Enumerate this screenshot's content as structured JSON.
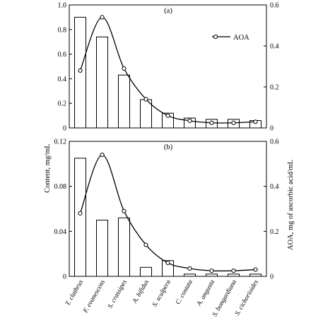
{
  "chart_data": [
    {
      "panel_label": "(a)",
      "type": "bar+line",
      "categories": [
        "T. clathrus",
        "F. evanescens",
        "S. crassipes",
        "A. bifidus",
        "S. sculpera",
        "C. costata",
        "A. angusta",
        "S. bongardiana",
        "S. cichorioides"
      ],
      "series": [
        {
          "kind": "bar",
          "axis": "left",
          "values": [
            0.9,
            0.74,
            0.43,
            0.23,
            0.12,
            0.08,
            0.07,
            0.07,
            0.06
          ]
        },
        {
          "name": "AOA",
          "kind": "line",
          "axis": "right",
          "values": [
            0.28,
            0.54,
            0.29,
            0.14,
            0.06,
            0.035,
            0.025,
            0.025,
            0.03
          ]
        }
      ],
      "ylim_left": [
        0,
        1.0
      ],
      "yticks_left": [
        "0",
        "0.2",
        "0.4",
        "0.6",
        "0.8",
        "1.0"
      ],
      "ylim_right": [
        0,
        0.6
      ],
      "yticks_right": [
        "0",
        "0.2",
        "0.4",
        "0.6"
      ],
      "legend": {
        "label": "AOA",
        "placement": "top-right"
      }
    },
    {
      "panel_label": "(b)",
      "type": "bar+line",
      "categories": [
        "T. clathrus",
        "F. evanescens",
        "S. crassipes",
        "A. bifidus",
        "S. sculpera",
        "C. costata",
        "A. angusta",
        "S. bongardiana",
        "S. cichorioides"
      ],
      "series": [
        {
          "kind": "bar",
          "axis": "left",
          "values": [
            0.105,
            0.05,
            0.052,
            0.008,
            0.014,
            0.002,
            0.002,
            0.002,
            0.002
          ]
        },
        {
          "name": "AOA",
          "kind": "line",
          "axis": "right",
          "values": [
            0.28,
            0.54,
            0.29,
            0.14,
            0.06,
            0.035,
            0.025,
            0.025,
            0.03
          ]
        }
      ],
      "ylim_left": [
        0,
        0.12
      ],
      "yticks_left": [
        "0",
        "0.04",
        "0.08",
        "0.12"
      ],
      "ylim_right": [
        0,
        0.6
      ],
      "yticks_right": [
        "0",
        "0.2",
        "0.4",
        "0.6"
      ]
    }
  ],
  "ylabel_left": "Content, mg/mL",
  "ylabel_right": "AOA, mg of ascorbic acid/mL"
}
